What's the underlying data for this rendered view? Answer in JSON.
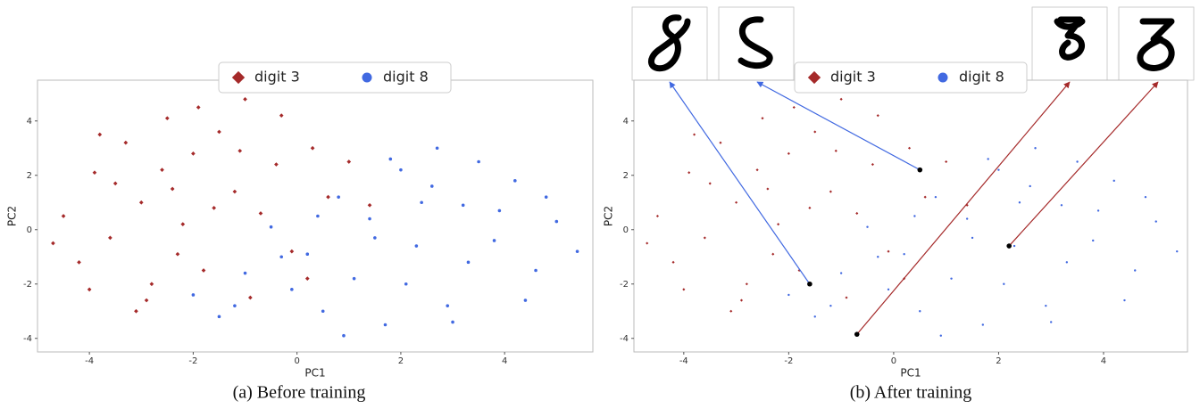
{
  "chart_data": [
    {
      "type": "scatter",
      "caption": "(a) Before training",
      "xlabel": "PC1",
      "ylabel": "PC2",
      "xlim": [
        -5,
        5.7
      ],
      "ylim": [
        -4.5,
        5.5
      ],
      "xticks": [
        -4,
        -2,
        0,
        2,
        4
      ],
      "yticks": [
        -4,
        -2,
        0,
        2,
        4
      ],
      "series": [
        {
          "name": "digit 3",
          "color": "#a52a2a",
          "marker": "diamond",
          "x": [
            -4.5,
            -4.2,
            -3.9,
            -3.6,
            -3.3,
            -3.0,
            -2.8,
            -2.5,
            -2.2,
            -2.0,
            -1.8,
            -1.5,
            -1.2,
            -1.0,
            -0.7,
            -0.4,
            -0.1,
            0.3,
            0.6,
            1.0,
            1.4,
            -4.7,
            -3.8,
            -3.1,
            -2.6,
            -2.3,
            -1.6,
            -0.9,
            -0.3,
            0.2,
            -3.5,
            -2.9,
            -1.9,
            -1.1,
            -4.0,
            -2.4
          ],
          "values": [
            0.5,
            -1.2,
            2.1,
            -0.3,
            3.2,
            1.0,
            -2.0,
            4.1,
            0.2,
            2.8,
            -1.5,
            3.6,
            1.4,
            4.8,
            0.6,
            2.4,
            -0.8,
            3.0,
            1.2,
            2.5,
            0.9,
            -0.5,
            3.5,
            -3.0,
            2.2,
            -0.9,
            0.8,
            -2.5,
            4.2,
            -1.8,
            1.7,
            -2.6,
            4.5,
            2.9,
            -2.2,
            1.5
          ]
        },
        {
          "name": "digit 8",
          "color": "#4169e1",
          "marker": "circle",
          "x": [
            5.0,
            4.6,
            4.2,
            3.8,
            3.5,
            3.2,
            2.9,
            2.6,
            2.3,
            2.0,
            1.7,
            1.4,
            1.1,
            0.8,
            0.5,
            0.2,
            -0.1,
            -0.5,
            -1.0,
            -1.5,
            -2.0,
            5.4,
            4.4,
            3.9,
            3.3,
            2.7,
            2.1,
            1.5,
            0.9,
            0.4,
            -0.3,
            -1.2,
            3.0,
            2.4,
            4.8,
            1.8
          ],
          "values": [
            0.3,
            -1.5,
            1.8,
            -0.4,
            2.5,
            0.9,
            -2.8,
            1.6,
            -0.6,
            2.2,
            -3.5,
            0.4,
            -1.8,
            1.2,
            -3.0,
            -0.9,
            -2.2,
            0.1,
            -1.6,
            -3.2,
            -2.4,
            -0.8,
            -2.6,
            0.7,
            -1.2,
            3.0,
            -2.0,
            -0.3,
            -3.9,
            0.5,
            -1.0,
            -2.8,
            -3.4,
            1.0,
            1.2,
            2.6
          ]
        }
      ]
    },
    {
      "type": "scatter",
      "caption": "(b) After training",
      "xlabel": "PC1",
      "ylabel": "PC2",
      "xlim": [
        -4.95,
        5.6
      ],
      "ylim": [
        -4.5,
        5.5
      ],
      "xticks": [
        -4,
        -2,
        0,
        2,
        4
      ],
      "yticks": [
        -4,
        -2,
        0,
        2,
        4
      ],
      "series": [
        {
          "name": "digit 3",
          "color": "#a52a2a",
          "marker": "diamond",
          "x": [
            -4.5,
            -4.2,
            -3.9,
            -3.6,
            -3.3,
            -3.0,
            -2.8,
            -2.5,
            -2.2,
            -2.0,
            -1.8,
            -1.5,
            -1.2,
            -1.0,
            -0.7,
            -0.4,
            -0.1,
            0.3,
            0.6,
            1.0,
            1.4,
            -4.7,
            -3.8,
            -3.1,
            -2.6,
            -2.3,
            -1.6,
            -0.9,
            -0.3,
            0.2,
            -3.5,
            -2.9,
            -1.9,
            -1.1,
            -4.0,
            -2.4
          ],
          "values": [
            0.5,
            -1.2,
            2.1,
            -0.3,
            3.2,
            1.0,
            -2.0,
            4.1,
            0.2,
            2.8,
            -1.5,
            3.6,
            1.4,
            4.8,
            0.6,
            2.4,
            -0.8,
            3.0,
            1.2,
            2.5,
            0.9,
            -0.5,
            3.5,
            -3.0,
            2.2,
            -0.9,
            0.8,
            -2.5,
            4.2,
            -1.8,
            1.7,
            -2.6,
            4.5,
            2.9,
            -2.2,
            1.5
          ]
        },
        {
          "name": "digit 8",
          "color": "#4169e1",
          "marker": "circle",
          "x": [
            5.0,
            4.6,
            4.2,
            3.8,
            3.5,
            3.2,
            2.9,
            2.6,
            2.3,
            2.0,
            1.7,
            1.4,
            1.1,
            0.8,
            0.5,
            0.2,
            -0.1,
            -0.5,
            -1.0,
            -1.5,
            -2.0,
            5.4,
            4.4,
            3.9,
            3.3,
            2.7,
            2.1,
            1.5,
            0.9,
            0.4,
            -0.3,
            -1.2,
            3.0,
            2.4,
            4.8,
            1.8
          ],
          "values": [
            0.3,
            -1.5,
            1.8,
            -0.4,
            2.5,
            0.9,
            -2.8,
            1.6,
            -0.6,
            2.2,
            -3.5,
            0.4,
            -1.8,
            1.2,
            -3.0,
            -0.9,
            -2.2,
            0.1,
            -1.6,
            -3.2,
            -2.4,
            -0.8,
            -2.6,
            0.7,
            -1.2,
            3.0,
            -2.0,
            -0.3,
            -3.9,
            0.5,
            -1.0,
            -2.8,
            -3.4,
            1.0,
            1.2,
            2.6
          ]
        }
      ],
      "highlight_x": [
        -1.6,
        0.5,
        -0.7,
        2.2
      ],
      "highlight_y": [
        -2.0,
        2.2,
        -3.85,
        -0.6
      ],
      "highlight_colors": [
        "#4169e1",
        "#4169e1",
        "#a52a2a",
        "#a52a2a"
      ]
    }
  ]
}
